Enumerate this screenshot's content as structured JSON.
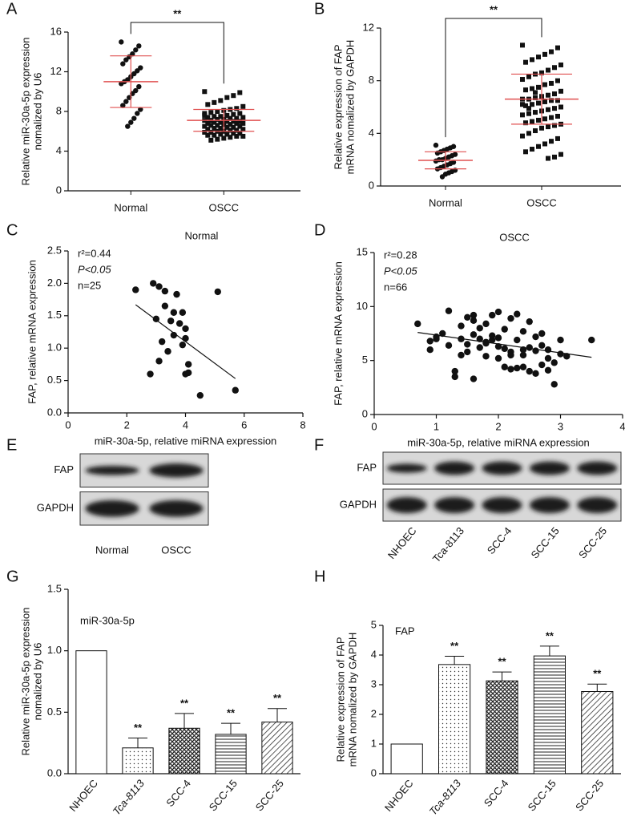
{
  "chart_data": [
    {
      "type": "strip",
      "panel": "A",
      "ylabel": [
        "Relative miR-30a-5p expression",
        "nomalized by U6"
      ],
      "categories": [
        "Normal",
        "OSCC"
      ],
      "markers": [
        "circle",
        "square"
      ],
      "groups": [
        [
          15,
          14.6,
          14.2,
          13.8,
          13.5,
          13.2,
          12.8,
          12.4,
          12.1,
          11.8,
          11.5,
          11.2,
          11.0,
          10.8,
          10.5,
          10.1,
          9.8,
          9.4,
          9.0,
          8.6,
          8.2,
          7.8,
          7.3,
          6.9,
          6.5
        ],
        [
          10.0,
          9.9,
          9.6,
          9.4,
          9.1,
          8.9,
          8.7,
          8.5,
          8.3,
          8.2,
          8.1,
          8.0,
          7.9,
          7.8,
          7.8,
          7.7,
          7.6,
          7.5,
          7.5,
          7.4,
          7.4,
          7.3,
          7.3,
          7.2,
          7.2,
          7.1,
          7.1,
          7.0,
          7.0,
          7.0,
          6.9,
          6.9,
          6.8,
          6.8,
          6.8,
          6.7,
          6.7,
          6.6,
          6.6,
          6.5,
          6.5,
          6.4,
          6.4,
          6.3,
          6.3,
          6.2,
          6.2,
          6.1,
          6.1,
          6.0,
          6.0,
          5.9,
          5.9,
          5.8,
          5.8,
          5.7,
          5.7,
          5.6,
          5.6,
          5.5,
          5.5,
          5.4,
          5.3,
          5.2,
          5.1,
          7.6
        ]
      ],
      "means": [
        11.0,
        7.1
      ],
      "sds": [
        2.6,
        1.1
      ],
      "significance": "**",
      "ylim": [
        0,
        16
      ],
      "yticks": [
        0,
        4,
        8,
        12,
        16
      ],
      "mean_color": "#e05050"
    },
    {
      "type": "strip",
      "panel": "B",
      "ylabel": [
        "Relative expression of FAP",
        "mRNA nomalized by GAPDH"
      ],
      "categories": [
        "Normal",
        "OSCC"
      ],
      "markers": [
        "circle",
        "square"
      ],
      "groups": [
        [
          3.1,
          3.0,
          2.9,
          2.8,
          2.7,
          2.6,
          2.5,
          2.4,
          2.3,
          2.2,
          2.1,
          2.0,
          2.0,
          1.9,
          1.8,
          1.7,
          1.6,
          1.5,
          1.4,
          1.3,
          1.2,
          1.1,
          1.0,
          0.9,
          0.7
        ],
        [
          10.7,
          10.5,
          10.2,
          10.0,
          9.8,
          9.6,
          9.4,
          9.2,
          9.0,
          8.8,
          8.6,
          8.5,
          8.3,
          8.1,
          8.0,
          7.8,
          7.7,
          7.5,
          7.4,
          7.3,
          7.2,
          7.0,
          6.9,
          6.8,
          6.7,
          6.6,
          6.6,
          6.5,
          6.5,
          6.4,
          6.3,
          6.2,
          6.1,
          6.0,
          5.9,
          5.8,
          5.7,
          5.6,
          5.5,
          5.4,
          5.3,
          5.2,
          5.1,
          5.0,
          4.9,
          4.8,
          4.7,
          4.6,
          4.5,
          4.4,
          4.2,
          4.0,
          3.8,
          3.6,
          3.4,
          3.2,
          3.0,
          2.8,
          2.6,
          2.4,
          2.2,
          2.1,
          6.8,
          7.1,
          5.9,
          6.2
        ]
      ],
      "means": [
        1.95,
        6.6
      ],
      "sds": [
        0.65,
        1.9
      ],
      "significance": "**",
      "ylim": [
        0,
        12
      ],
      "yticks": [
        0,
        4,
        8,
        12
      ],
      "mean_color": "#e05050"
    },
    {
      "type": "scatter",
      "panel": "C",
      "title": "Normal",
      "xlabel": "miR-30a-5p, relative miRNA expression",
      "ylabel": [
        "FAP, relative mRNA expression"
      ],
      "annotations": [
        "r²=0.44",
        "P<0.05",
        "n=25"
      ],
      "x": [
        2.3,
        2.9,
        3.1,
        3.3,
        3.7,
        5.1,
        3.3,
        3.6,
        3.9,
        3.0,
        3.5,
        3.8,
        4.0,
        3.2,
        3.6,
        4.0,
        3.9,
        3.4,
        4.1,
        4.0,
        4.1,
        3.1,
        2.8,
        4.5,
        5.7
      ],
      "y": [
        1.9,
        2.0,
        1.95,
        1.88,
        1.83,
        1.87,
        1.65,
        1.55,
        1.55,
        1.45,
        1.42,
        1.38,
        1.3,
        1.1,
        1.2,
        1.15,
        1.05,
        0.95,
        0.75,
        0.6,
        0.62,
        0.8,
        0.6,
        0.27,
        0.35
      ],
      "fit": {
        "x": [
          2.3,
          5.7
        ],
        "y": [
          1.67,
          0.53
        ]
      },
      "xlim": [
        0,
        8
      ],
      "xticks": [
        0,
        2,
        4,
        6,
        8
      ],
      "ylim": [
        0,
        2.5
      ],
      "yticks": [
        {
          "value": 0,
          "label": "0.0"
        },
        {
          "value": 0.5,
          "label": "0.5"
        },
        {
          "value": 1,
          "label": "1.0"
        },
        {
          "value": 1.5,
          "label": "1.5"
        },
        {
          "value": 2,
          "label": "2.0"
        },
        {
          "value": 2.5,
          "label": "2.5"
        }
      ]
    },
    {
      "type": "scatter",
      "panel": "D",
      "title": "OSCC",
      "xlabel": "miR-30a-5p, relative miRNA expression",
      "ylabel": [
        "FAP, relative mRNA expression"
      ],
      "annotations": [
        "r²=0.28",
        "P<0.05",
        "n=66"
      ],
      "x": [
        0.7,
        0.9,
        0.9,
        1.0,
        1.1,
        1.2,
        1.3,
        1.3,
        1.4,
        1.4,
        1.5,
        1.5,
        1.5,
        1.6,
        1.6,
        1.6,
        1.7,
        1.7,
        1.7,
        1.8,
        1.8,
        1.8,
        1.9,
        1.9,
        1.9,
        2.0,
        2.0,
        2.0,
        2.1,
        2.1,
        2.1,
        2.2,
        2.2,
        2.2,
        2.3,
        2.3,
        2.3,
        2.4,
        2.4,
        2.4,
        2.5,
        2.5,
        2.5,
        2.6,
        2.6,
        2.6,
        2.7,
        2.7,
        2.7,
        2.8,
        2.8,
        2.9,
        2.9,
        3.0,
        3.0,
        3.1,
        1.0,
        1.2,
        1.4,
        1.6,
        2.0,
        2.4,
        2.8,
        1.8,
        2.2,
        3.5
      ],
      "y": [
        8.4,
        6.0,
        6.8,
        7.2,
        7.5,
        9.6,
        4.0,
        3.5,
        7.0,
        8.2,
        6.5,
        9.0,
        5.8,
        7.4,
        3.3,
        9.2,
        6.2,
        8.0,
        7.0,
        6.6,
        5.4,
        8.4,
        6.9,
        9.2,
        7.3,
        6.3,
        5.2,
        9.5,
        7.9,
        6.1,
        4.4,
        5.8,
        8.9,
        4.2,
        6.9,
        9.3,
        4.3,
        5.5,
        7.7,
        4.4,
        6.2,
        8.6,
        4.0,
        5.9,
        7.2,
        3.8,
        6.4,
        7.5,
        4.6,
        5.2,
        6.0,
        2.8,
        4.8,
        5.6,
        6.9,
        5.4,
        7.0,
        6.4,
        5.5,
        8.7,
        7.1,
        6.0,
        4.1,
        6.7,
        5.5,
        6.9
      ],
      "fit": {
        "x": [
          0.7,
          3.5
        ],
        "y": [
          7.6,
          5.3
        ]
      },
      "xlim": [
        0,
        4
      ],
      "xticks": [
        0,
        1,
        2,
        3,
        4
      ],
      "ylim": [
        0,
        15
      ],
      "yticks": [
        0,
        5,
        10,
        15
      ]
    },
    {
      "type": "blot",
      "panel": "E",
      "rows": [
        "FAP",
        "GAPDH"
      ],
      "lanes": [
        "Normal",
        "OSCC"
      ]
    },
    {
      "type": "blot",
      "panel": "F",
      "rows": [
        "FAP",
        "GAPDH"
      ],
      "lanes": [
        "NHOEC",
        "Tca-8113",
        "SCC-4",
        "SCC-15",
        "SCC-25"
      ]
    },
    {
      "type": "bar",
      "panel": "G",
      "label": "miR-30a-5p",
      "ylabel": [
        "Relative miR-30a-5p expression",
        "nomalized by U6"
      ],
      "categories": [
        "NHOEC",
        "Tca-8113",
        "SCC-4",
        "SCC-15",
        "SCC-25"
      ],
      "values": [
        1,
        0.21,
        0.37,
        0.32,
        0.42
      ],
      "errors": [
        0,
        0.08,
        0.12,
        0.09,
        0.11
      ],
      "annotations": [
        null,
        "**",
        "**",
        "**",
        "**"
      ],
      "patterns": [
        "none",
        "dots",
        "crosshatch",
        "hlines",
        "diagonal"
      ],
      "ylim": [
        0,
        1.5
      ],
      "yticks": [
        {
          "value": 0,
          "label": "0.0"
        },
        {
          "value": 0.5,
          "label": "0.5"
        },
        {
          "value": 1,
          "label": "1.0"
        },
        {
          "value": 1.5,
          "label": "1.5"
        }
      ]
    },
    {
      "type": "bar",
      "panel": "H",
      "label": "FAP",
      "ylabel": [
        "Relative expression of FAP",
        "mRNA nomalized by GAPDH"
      ],
      "categories": [
        "NHOEC",
        "Tca-8113",
        "SCC-4",
        "SCC-15",
        "SCC-25"
      ],
      "values": [
        1,
        3.68,
        3.13,
        3.97,
        2.77
      ],
      "errors": [
        0,
        0.28,
        0.3,
        0.33,
        0.25
      ],
      "annotations": [
        null,
        "**",
        "**",
        "**",
        "**"
      ],
      "patterns": [
        "none",
        "dots",
        "crosshatch",
        "hlines",
        "diagonal"
      ],
      "ylim": [
        0,
        5
      ],
      "yticks": [
        0,
        1,
        2,
        3,
        4,
        5
      ]
    }
  ]
}
